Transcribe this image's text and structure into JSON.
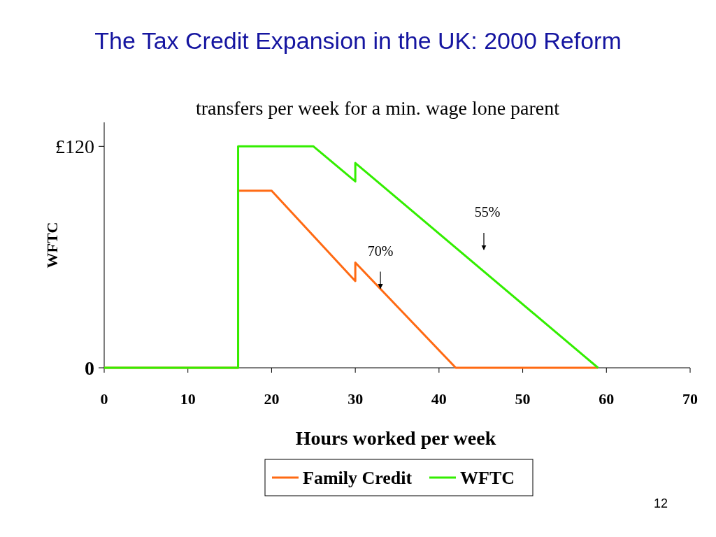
{
  "chart_data": {
    "type": "line",
    "title": "The Tax Credit Expansion in the UK: 2000 Reform",
    "subtitle": "transfers per week for a min. wage lone parent",
    "xlabel": "Hours worked per week",
    "ylabel": "WFTC",
    "xlim": [
      0,
      70
    ],
    "xticks": [
      0,
      10,
      20,
      30,
      40,
      50,
      60,
      70
    ],
    "ylim": [
      0,
      133
    ],
    "yticks": [
      {
        "value": 0,
        "label": "0"
      },
      {
        "value": 120,
        "label": "£120"
      }
    ],
    "grid": false,
    "legend": "bottom",
    "marker": "none",
    "line_style": "solid",
    "series": [
      {
        "name": "Family Credit",
        "color": "#ff6a13",
        "x": [
          0,
          16,
          16,
          20,
          30,
          30,
          42,
          59
        ],
        "values": [
          0,
          0,
          96,
          96,
          47,
          57,
          0,
          0
        ]
      },
      {
        "name": "WFTC",
        "color": "#33ee00",
        "x": [
          0,
          16,
          16,
          25,
          30,
          30,
          59
        ],
        "values": [
          0,
          0,
          120,
          120,
          101,
          111,
          0
        ]
      }
    ],
    "annotations": [
      "55%",
      {
        "text": "70%",
        "x": 33,
        "y": 43
      },
      "12"
    ]
  }
}
